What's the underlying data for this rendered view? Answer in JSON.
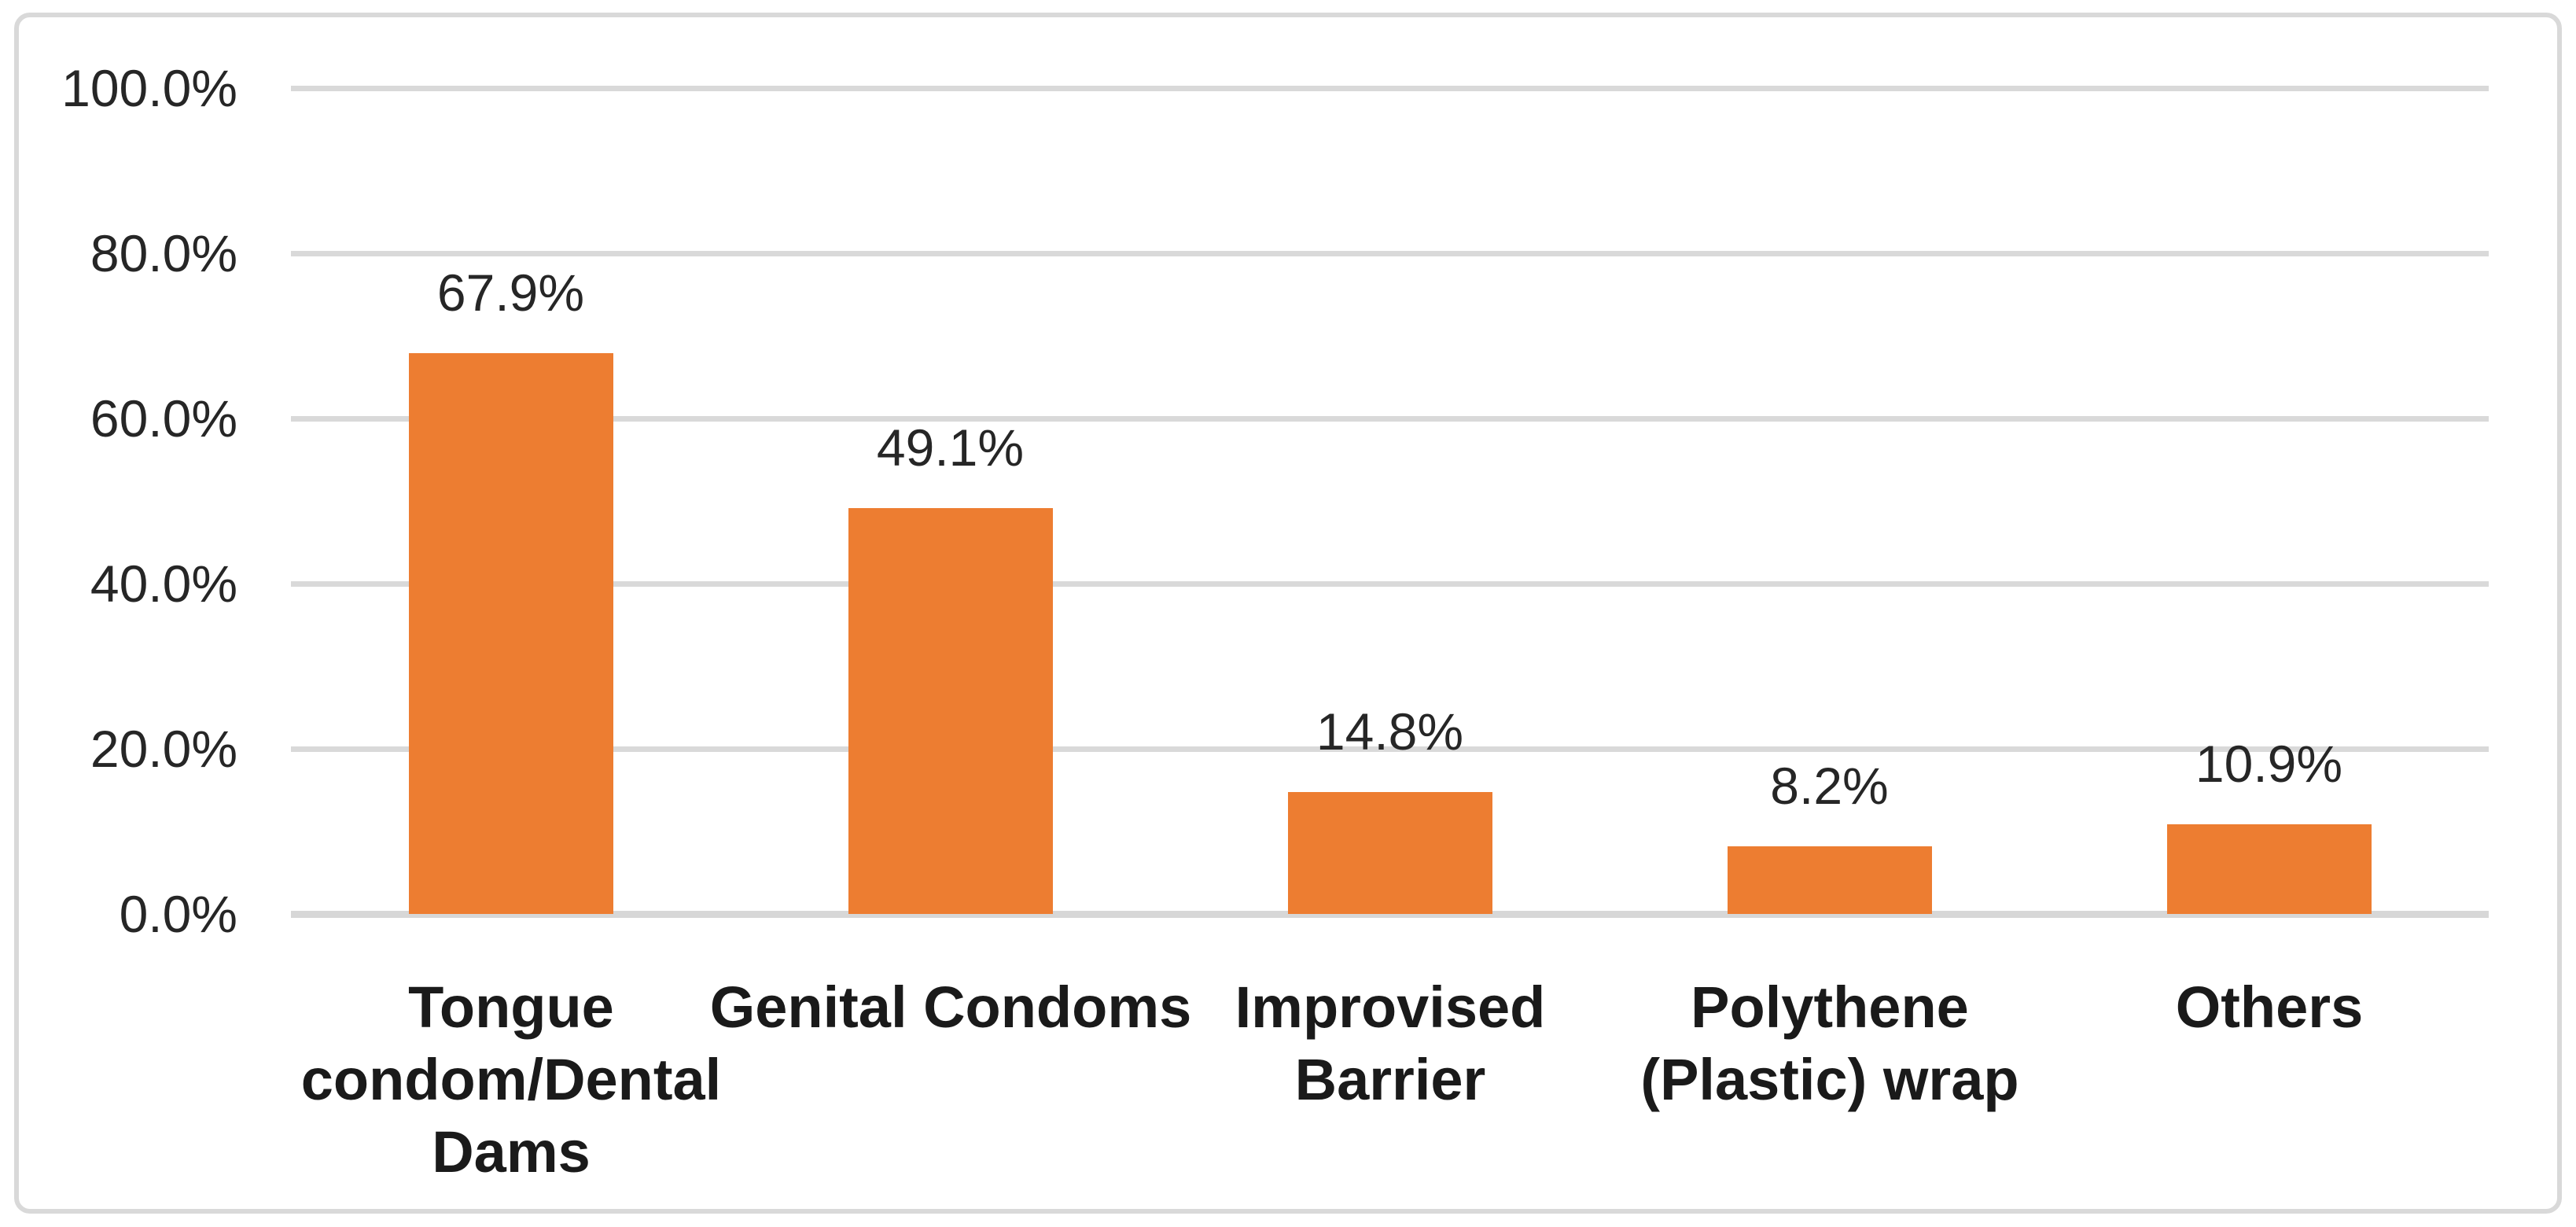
{
  "chart_data": {
    "type": "bar",
    "title": "",
    "xlabel": "",
    "ylabel": "",
    "categories": [
      "Tongue condom/Dental Dams",
      "Genital Condoms",
      "Improvised Barrier",
      "Polythene (Plastic) wrap",
      "Others"
    ],
    "categories_display": [
      "Tongue\ncondom/Dental\nDams",
      "Genital Condoms",
      "Improvised\nBarrier",
      "Polythene\n(Plastic) wrap",
      "Others"
    ],
    "values": [
      67.9,
      49.1,
      14.8,
      8.2,
      10.9
    ],
    "data_labels": [
      "67.9%",
      "49.1%",
      "14.8%",
      "8.2%",
      "10.9%"
    ],
    "ylim": [
      0,
      100
    ],
    "y_ticks": [
      "100.0%",
      "80.0%",
      "60.0%",
      "40.0%",
      "20.0%",
      "0.0%"
    ],
    "y_tick_values": [
      100,
      80,
      60,
      40,
      20,
      0
    ],
    "grid": true,
    "legend_position": "none",
    "bar_color": "#ED7D31",
    "gridline_color": "#D9D9D9",
    "axis_line_color": "#D7D7D7",
    "text_color": "#262626",
    "frame_border_color": "#D9D9D9"
  }
}
